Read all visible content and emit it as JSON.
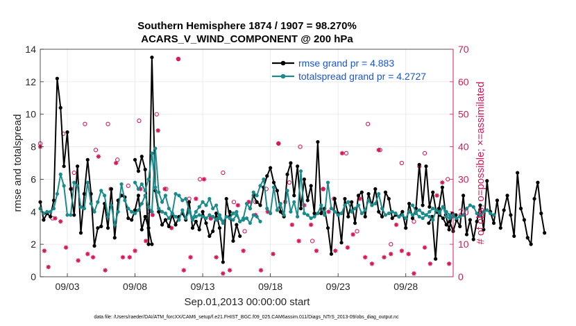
{
  "chart_data": {
    "type": "line",
    "title_line1": "Southern Hemisphere 1874 / 1907 = 98.270%",
    "title_line2": "ACARS_V_WIND_COMPONENT @ 200 hPa",
    "xlabel": "Sep.01,2013 00:00:00 start",
    "ylabel_left": "rmse and totalspread",
    "ylabel_right": "# of obs: o=possible; ×=assimilated",
    "footer": "data file: /Users/raeder/DAI/ATM_forcXX/CAM6_setup/f.e21.FHIST_BGC.f09_025.CAM6assim.011/Diags_NTrS_2013-09/obs_diag_output.nc",
    "x_ticks": [
      {
        "value": 3,
        "label": "09/03"
      },
      {
        "value": 8,
        "label": "09/08"
      },
      {
        "value": 13,
        "label": "09/13"
      },
      {
        "value": 18,
        "label": "09/18"
      },
      {
        "value": 23,
        "label": "09/23"
      },
      {
        "value": 28,
        "label": "09/28"
      }
    ],
    "xlim": [
      1,
      31.5
    ],
    "ylim_left": [
      0,
      14
    ],
    "ylim_right": [
      0,
      70
    ],
    "y_ticks_left": [
      "0",
      "2",
      "4",
      "6",
      "8",
      "10",
      "12",
      "14"
    ],
    "y_ticks_right": [
      "0",
      "10",
      "20",
      "30",
      "40",
      "50",
      "60",
      "70"
    ],
    "grid": true,
    "legend_position": "top-right",
    "colors": {
      "rmse": "#000000",
      "spread": "#1a8a8a",
      "obs": "#d6185a",
      "legend_text": "#1a55d6",
      "grid": "#e6e6e6"
    },
    "series": [
      {
        "name": "rmse grand pr = 4.883",
        "segments": [
          {
            "x0": 1.0,
            "values": [
              4.6,
              3.5,
              3.9,
              3.7,
              4.7,
              12.2,
              10.4,
              6.8,
              8.9,
              5.4,
              3.8,
              6.8,
              2.7,
              5.1,
              7.2,
              5.1,
              1.9,
              3.0,
              3.1,
              4.5,
              3.0,
              5.4,
              2.4,
              4.7,
              5.0,
              4.9,
              3.6,
              3.5,
              4.1,
              5.0,
              2.9,
              3.7,
              3.0,
              2.0
            ]
          },
          {
            "x0": 8.0,
            "values": [
              7.2,
              6.5,
              7.4,
              6.6,
              2.0,
              13.5,
              5.3,
              4.0,
              3.2,
              3.5,
              3.1,
              3.8,
              3.2,
              3.7,
              3.9,
              3.5,
              4.6,
              3.0,
              3.4,
              2.9,
              4.0,
              3.3,
              2.5,
              2.8,
              3.9,
              3.0,
              0.9,
              4.8,
              3.7,
              3.9
            ]
          },
          {
            "x0": 15.0,
            "values": [
              4.0,
              2.2,
              3.2,
              2.5
            ]
          },
          {
            "x0": 16.5,
            "values": [
              4.2,
              5.0,
              4.6,
              4.4,
              5.5,
              6.2,
              6.7,
              5.8,
              5.3,
              4.0,
              3.7,
              6.3,
              7.0,
              5.0,
              6.8,
              4.2,
              6.0,
              4.7,
              5.6,
              3.9,
              8.3,
              3.9,
              4.2,
              3.0,
              1.4,
              4.8,
              3.9,
              2.1,
              4.8,
              3.7,
              4.6,
              3.3,
              5.0,
              5.2,
              3.7,
              5.1,
              4.4,
              5.4,
              4.0,
              3.7,
              5.2,
              4.8,
              3.6,
              3.8,
              3.7,
              4.0,
              3.0,
              4.5,
              3.6,
              4.2,
              6.9,
              4.4,
              6.8,
              4.3,
              5.2,
              4.0,
              3.8,
              3.6,
              3.2,
              3.4,
              2.8,
              3.5,
              3.1,
              5.0,
              2.6,
              3.5,
              2.3,
              3.4,
              4.4,
              2.9,
              5.9,
              4.0,
              3.3,
              4.7,
              3.0,
              4.1,
              5.0,
              3.8,
              2.5,
              6.4,
              4.2,
              3.5,
              2.4,
              2.0,
              4.8,
              5.8,
              3.9,
              2.7
            ]
          },
          {
            "x0": 29.7,
            "values": [
              3.3,
              3.7,
              1.1,
              4.2,
              5.5,
              3.8,
              2.9,
              3.9,
              3.8
            ]
          }
        ]
      },
      {
        "name": "totalspread grand pr = 4.2727",
        "segments": [
          {
            "x0": 1.0,
            "values": [
              4.2,
              3.9,
              4.0,
              4.0,
              4.2,
              5.1,
              6.3,
              5.6,
              3.8,
              3.8,
              5.8,
              5.6,
              4.3,
              4.2,
              5.8,
              4.5,
              4.0,
              4.6,
              5.3,
              5.0,
              3.7,
              4.4,
              3.2,
              4.0,
              5.7,
              4.7,
              4.2,
              4.0,
              3.9,
              4.1,
              4.5,
              5.0,
              4.3,
              4.0,
              7.9,
              5.2,
              4.6,
              5.0,
              4.2,
              3.9,
              5.1,
              5.0,
              4.7,
              4.8,
              4.1,
              3.6,
              4.0,
              4.3,
              4.6,
              4.4,
              4.8,
              4.2,
              4.4,
              3.6,
              3.3
            ]
          },
          {
            "x0": 8.0,
            "values": [
              5.8,
              5.4,
              5.7,
              5.3,
              6.0,
              7.6,
              5.5,
              4.2,
              4.0,
              3.9,
              3.6,
              3.9,
              3.7,
              3.5,
              4.1,
              3.6,
              4.0,
              3.5,
              3.7,
              3.8,
              3.7,
              3.6,
              3.8,
              3.7,
              3.5,
              3.8,
              3.4,
              3.7,
              3.6,
              3.5,
              3.8,
              3.4,
              3.5,
              3.6,
              3.3,
              3.8,
              3.7,
              3.4
            ]
          },
          {
            "x0": 15.0,
            "values": [
              3.6,
              3.9,
              4.0,
              3.4,
              3.6,
              4.5,
              4.2,
              5.2,
              5.0,
              5.6,
              6.0,
              4.2,
              3.9,
              5.5,
              4.1,
              4.5,
              3.8,
              5.3,
              4.0,
              4.6,
              3.7,
              6.5,
              3.9,
              3.8,
              3.6,
              3.7,
              3.9,
              4.4,
              3.8,
              5.8,
              4.2,
              4.0,
              3.8,
              3.9,
              4.4,
              4.6,
              4.0,
              4.2,
              4.4,
              3.9,
              4.1,
              4.7,
              4.4,
              4.5,
              5.1,
              4.2,
              3.8,
              3.9,
              4.0,
              3.9,
              3.7,
              3.8,
              3.6,
              4.0,
              3.8,
              3.9,
              3.7,
              3.6,
              3.8,
              4.0,
              4.2,
              4.1,
              3.9,
              4.3,
              4.0,
              3.8,
              3.7,
              3.6,
              3.7,
              3.8,
              4.2,
              4.4,
              4.3,
              3.9,
              3.8,
              4.0,
              4.1,
              3.9,
              3.8
            ]
          },
          {
            "x0": 28.5,
            "values": [
              4.4,
              4.0,
              4.1,
              3.9,
              3.8,
              3.7,
              3.5,
              4.1,
              4.0,
              4.3,
              3.7,
              3.6,
              3.8
            ]
          }
        ]
      }
    ],
    "obs_possible": [
      [
        1,
        41
      ],
      [
        1.9,
        18
      ],
      [
        2.7,
        44
      ],
      [
        3.5,
        32
      ],
      [
        4.3,
        47
      ],
      [
        5.1,
        39
      ],
      [
        6.0,
        47
      ],
      [
        6.7,
        36
      ],
      [
        7.5,
        28
      ],
      [
        8.3,
        48
      ],
      [
        9.0,
        20
      ],
      [
        9.6,
        50
      ],
      [
        10.3,
        27
      ],
      [
        11.2,
        67
      ],
      [
        12.0,
        24
      ],
      [
        12.8,
        30
      ],
      [
        13.6,
        18
      ],
      [
        14.5,
        32
      ],
      [
        15.3,
        23
      ],
      [
        16.1,
        14
      ],
      [
        16.9,
        23
      ],
      [
        17.7,
        27
      ],
      [
        18.6,
        41
      ],
      [
        19.4,
        29
      ],
      [
        20.2,
        40
      ],
      [
        21.1,
        11
      ],
      [
        21.9,
        27
      ],
      [
        22.7,
        24
      ],
      [
        23.6,
        38
      ],
      [
        24.4,
        14
      ],
      [
        25.2,
        47
      ],
      [
        26.1,
        39
      ],
      [
        26.9,
        10
      ],
      [
        27.7,
        35
      ],
      [
        28.6,
        17
      ],
      [
        29.4,
        38
      ],
      [
        30.3,
        20
      ],
      [
        31.1,
        30
      ]
    ],
    "obs_assim": [
      [
        1,
        40
      ],
      [
        1.3,
        8
      ],
      [
        1.6,
        3
      ],
      [
        2.1,
        18
      ],
      [
        2.5,
        17
      ],
      [
        2.9,
        9
      ],
      [
        3.3,
        27
      ],
      [
        3.8,
        5
      ],
      [
        4.5,
        7
      ],
      [
        4.9,
        6
      ],
      [
        5.3,
        37
      ],
      [
        5.8,
        2
      ],
      [
        6.2,
        27
      ],
      [
        6.6,
        35
      ],
      [
        7.1,
        6
      ],
      [
        7.6,
        6
      ],
      [
        8.0,
        8
      ],
      [
        8.4,
        27
      ],
      [
        8.8,
        11
      ],
      [
        9.3,
        19
      ],
      [
        9.7,
        45
      ],
      [
        10.2,
        27
      ],
      [
        10.7,
        15
      ],
      [
        11.2,
        67
      ],
      [
        11.6,
        2
      ],
      [
        12.1,
        6
      ],
      [
        12.5,
        24
      ],
      [
        13.1,
        30
      ],
      [
        13.6,
        18
      ],
      [
        14.0,
        6
      ],
      [
        14.5,
        1
      ],
      [
        15.0,
        2
      ],
      [
        15.6,
        22
      ],
      [
        16.0,
        8
      ],
      [
        16.4,
        23
      ],
      [
        16.9,
        19
      ],
      [
        17.3,
        2
      ],
      [
        17.8,
        20
      ],
      [
        18.2,
        7
      ],
      [
        18.6,
        41
      ],
      [
        19.1,
        23
      ],
      [
        19.6,
        16
      ],
      [
        20.1,
        11
      ],
      [
        20.5,
        22
      ],
      [
        21.0,
        16
      ],
      [
        21.4,
        8
      ],
      [
        21.9,
        27
      ],
      [
        22.3,
        20
      ],
      [
        22.8,
        8
      ],
      [
        23.3,
        38
      ],
      [
        23.7,
        9
      ],
      [
        24.1,
        13
      ],
      [
        24.6,
        24
      ],
      [
        25.0,
        6
      ],
      [
        25.5,
        4
      ],
      [
        26.0,
        39
      ],
      [
        26.4,
        6
      ],
      [
        26.9,
        7
      ],
      [
        27.3,
        16
      ],
      [
        27.7,
        8
      ],
      [
        28.2,
        7
      ],
      [
        28.6,
        1
      ],
      [
        29.0,
        34
      ],
      [
        29.4,
        9
      ],
      [
        29.8,
        4
      ],
      [
        30.3,
        25
      ],
      [
        30.7,
        29
      ],
      [
        31.2,
        4
      ]
    ]
  }
}
